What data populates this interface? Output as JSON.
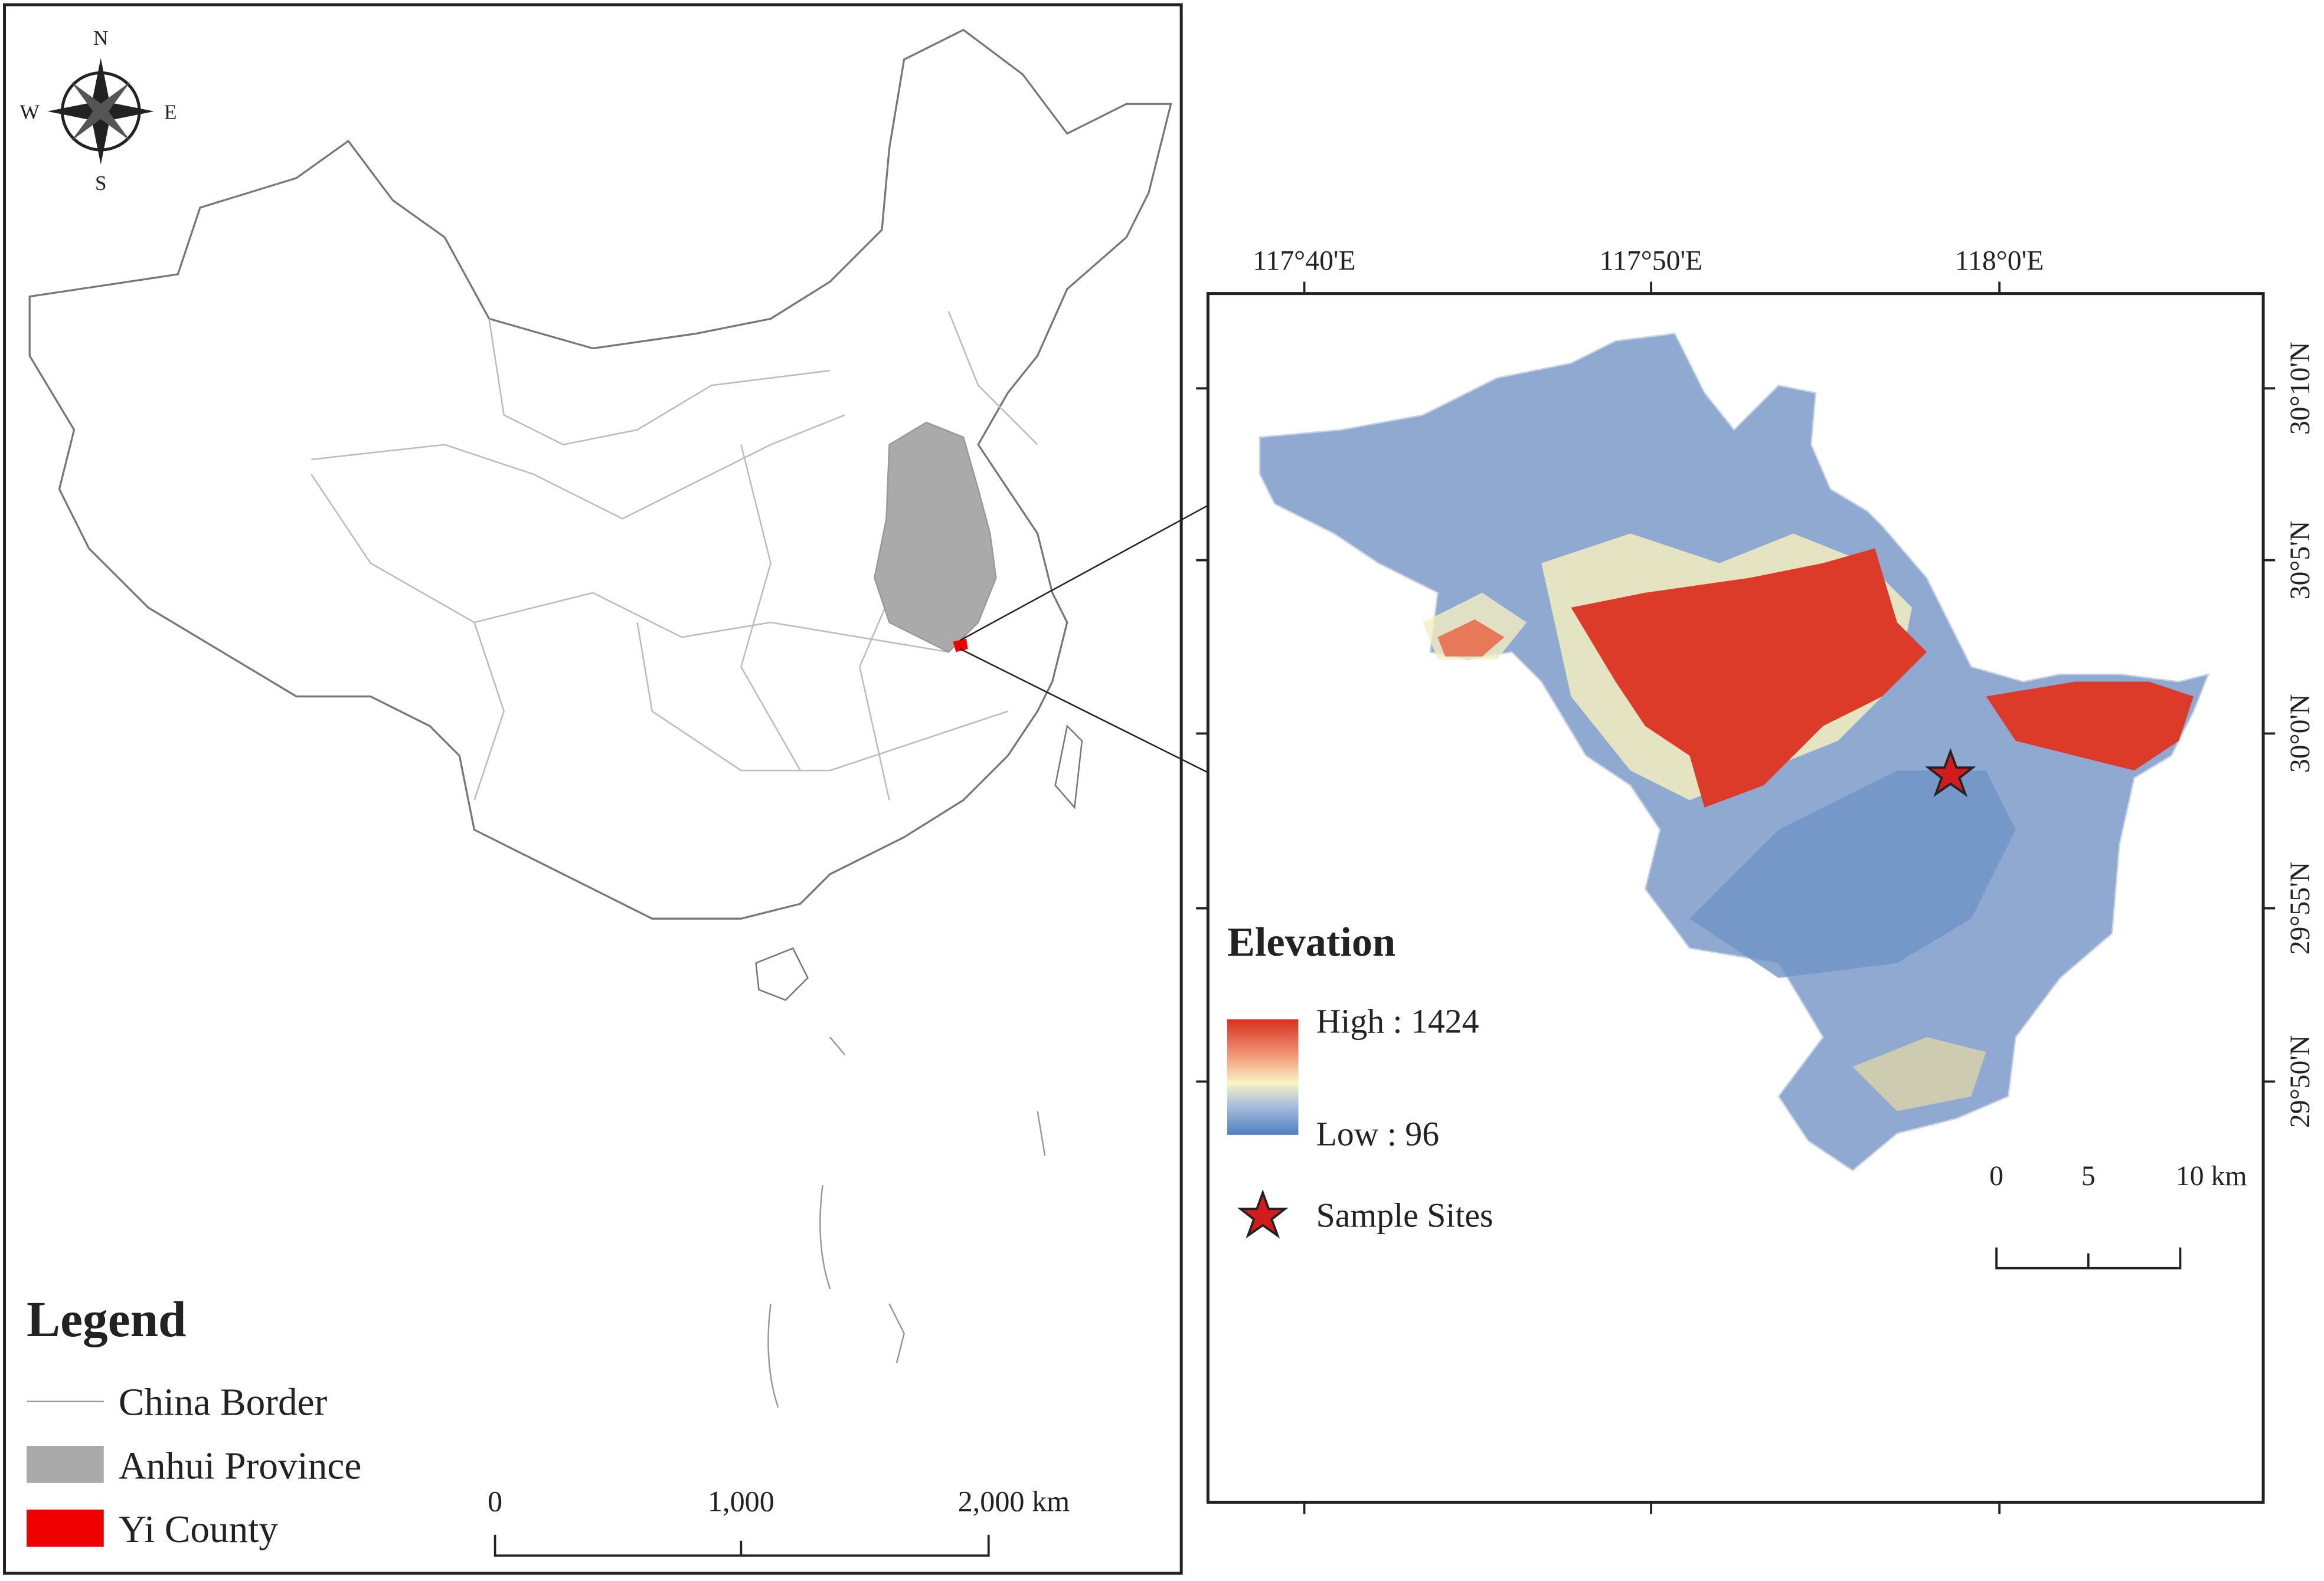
{
  "compass": {
    "north": "N",
    "south": "S",
    "east": "E",
    "west": "W"
  },
  "legend": {
    "title": "Legend",
    "items": [
      "China Border",
      "Anhui Province",
      "Yi County"
    ]
  },
  "china_scale": {
    "labels": [
      "0",
      "1,000",
      "2,000 km"
    ]
  },
  "inset": {
    "longitude_labels": [
      "117°40'E",
      "117°50'E",
      "118°0'E"
    ],
    "latitude_labels": [
      "30°10'N",
      "30°5'N",
      "30°0'N",
      "29°55'N",
      "29°50'N"
    ],
    "elevation": {
      "title": "Elevation",
      "high": "High : 1424",
      "low": "Low : 96"
    },
    "sample_sites": "Sample Sites",
    "scale": {
      "labels": [
        "0",
        "5",
        "10 km"
      ]
    }
  }
}
